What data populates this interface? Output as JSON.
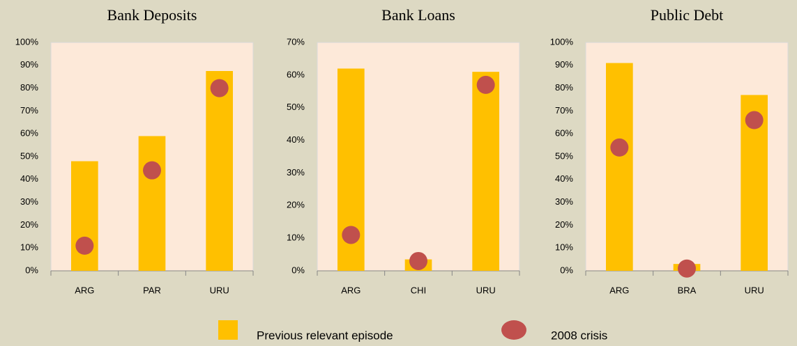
{
  "chart_data": [
    {
      "type": "bar",
      "title": "Bank Deposits",
      "categories": [
        "ARG",
        "PAR",
        "URU"
      ],
      "series": [
        {
          "name": "Previous relevant episode",
          "color": "#ffc000",
          "mark": "bar",
          "values": [
            48,
            59,
            87.5
          ]
        },
        {
          "name": "2008 crisis",
          "color": "#c0504d",
          "mark": "dot",
          "values": [
            11,
            44,
            80
          ]
        }
      ],
      "ylim": [
        0,
        100
      ],
      "yticks": [
        {
          "value": 0,
          "label": "0%"
        },
        {
          "value": 10,
          "label": "10%"
        },
        {
          "value": 20,
          "label": "20%"
        },
        {
          "value": 30,
          "label": "30%"
        },
        {
          "value": 40,
          "label": "40%"
        },
        {
          "value": 50,
          "label": "50%"
        },
        {
          "value": 60,
          "label": "60%"
        },
        {
          "value": 70,
          "label": "70%"
        },
        {
          "value": 80,
          "label": "80%"
        },
        {
          "value": 90,
          "label": "90%"
        },
        {
          "value": 100,
          "label": "100%"
        }
      ]
    },
    {
      "type": "bar",
      "title": "Bank Loans",
      "categories": [
        "ARG",
        "CHI",
        "URU"
      ],
      "series": [
        {
          "color": "#ffc000",
          "mark": "bar",
          "values": [
            62,
            3.5,
            61
          ]
        },
        {
          "color": "#c0504d",
          "mark": "dot",
          "values": [
            11,
            3,
            57
          ]
        }
      ],
      "ylim": [
        0,
        70
      ],
      "yticks": [
        {
          "value": 0,
          "label": "0%"
        },
        {
          "value": 10,
          "label": "10%"
        },
        {
          "value": 20,
          "label": "20%"
        },
        {
          "value": 30,
          "label": "30%"
        },
        {
          "value": 40,
          "label": "40%"
        },
        {
          "value": 50,
          "label": "50%"
        },
        {
          "value": 60,
          "label": "60%"
        },
        {
          "value": 70,
          "label": "70%"
        }
      ]
    },
    {
      "type": "bar",
      "title": "Public Debt",
      "categories": [
        "ARG",
        "BRA",
        "URU"
      ],
      "series": [
        {
          "color": "#ffc000",
          "mark": "bar",
          "values": [
            91,
            3,
            77
          ]
        },
        {
          "color": "#c0504d",
          "mark": "dot",
          "values": [
            54,
            1,
            66
          ]
        }
      ],
      "ylim": [
        0,
        100
      ],
      "yticks": [
        {
          "value": 0,
          "label": "0%"
        },
        {
          "value": 10,
          "label": "10%"
        },
        {
          "value": 20,
          "label": "20%"
        },
        {
          "value": 30,
          "label": "30%"
        },
        {
          "value": 40,
          "label": "40%"
        },
        {
          "value": 50,
          "label": "50%"
        },
        {
          "value": 60,
          "label": "60%"
        },
        {
          "value": 70,
          "label": "70%"
        },
        {
          "value": 80,
          "label": "80%"
        },
        {
          "value": 90,
          "label": "90%"
        },
        {
          "value": 100,
          "label": "100%"
        }
      ]
    }
  ]
}
